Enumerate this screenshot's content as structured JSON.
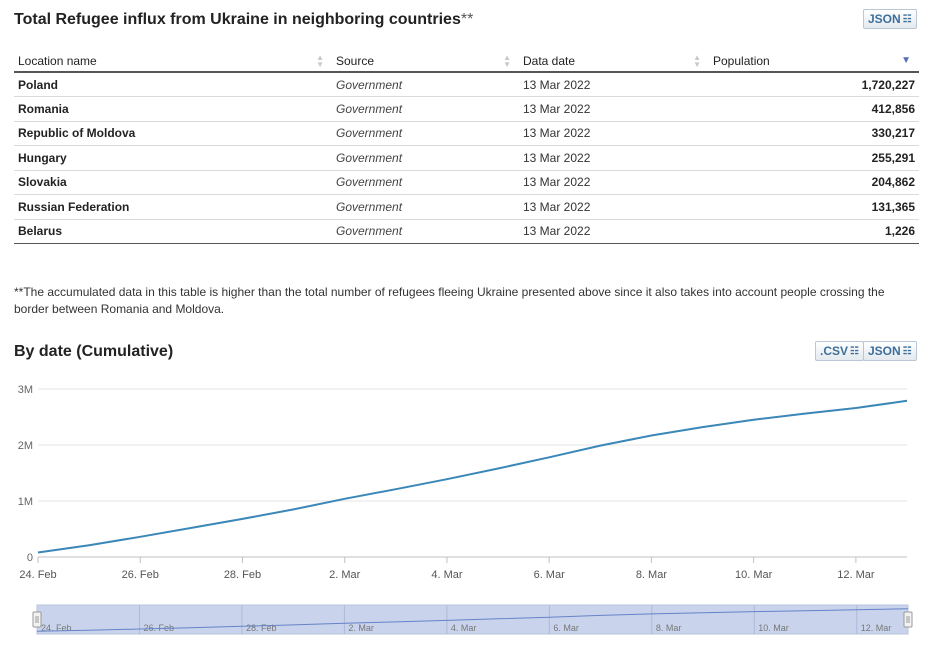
{
  "table_section": {
    "title": "Total Refugee influx from Ukraine in neighboring countries",
    "title_suffix": "**",
    "json_button": "JSON",
    "columns": [
      "Location name",
      "Source",
      "Data date",
      "Population"
    ],
    "rows": [
      {
        "location": "Poland",
        "source": "Government",
        "date": "13 Mar 2022",
        "population": "1,720,227"
      },
      {
        "location": "Romania",
        "source": "Government",
        "date": "13 Mar 2022",
        "population": "412,856"
      },
      {
        "location": "Republic of Moldova",
        "source": "Government",
        "date": "13 Mar 2022",
        "population": "330,217"
      },
      {
        "location": "Hungary",
        "source": "Government",
        "date": "13 Mar 2022",
        "population": "255,291"
      },
      {
        "location": "Slovakia",
        "source": "Government",
        "date": "13 Mar 2022",
        "population": "204,862"
      },
      {
        "location": "Russian Federation",
        "source": "Government",
        "date": "13 Mar 2022",
        "population": "131,365"
      },
      {
        "location": "Belarus",
        "source": "Government",
        "date": "13 Mar 2022",
        "population": "1,226"
      }
    ],
    "footnote": "**The accumulated data in this table is higher than the total number of refugees fleeing Ukraine presented above since it also takes into account people crossing the border between Romania and Moldova."
  },
  "chart_section": {
    "title": "By date (Cumulative)",
    "csv_button": ".CSV",
    "json_button": "JSON",
    "line_color": "#3a87b8",
    "navigator_fill": "#c9d4ec",
    "navigator_stroke": "#6683c7"
  },
  "chart_data": {
    "type": "line",
    "title": "By date (Cumulative)",
    "x": [
      "2022-02-24",
      "2022-02-25",
      "2022-02-26",
      "2022-02-27",
      "2022-02-28",
      "2022-03-01",
      "2022-03-02",
      "2022-03-03",
      "2022-03-04",
      "2022-03-05",
      "2022-03-06",
      "2022-03-07",
      "2022-03-08",
      "2022-03-09",
      "2022-03-10",
      "2022-03-11",
      "2022-03-12",
      "2022-03-13"
    ],
    "series": [
      {
        "values": [
          80000,
          210000,
          360000,
          520000,
          680000,
          850000,
          1040000,
          1210000,
          1390000,
          1580000,
          1780000,
          1990000,
          2170000,
          2320000,
          2450000,
          2560000,
          2660000,
          2790000
        ]
      }
    ],
    "x_ticks": [
      "24. Feb",
      "26. Feb",
      "28. Feb",
      "2. Mar",
      "4. Mar",
      "6. Mar",
      "8. Mar",
      "10. Mar",
      "12. Mar"
    ],
    "y_ticks": [
      "0",
      "1M",
      "2M",
      "3M"
    ],
    "ylim": [
      0,
      3000000
    ],
    "grid": "horizontal",
    "navigator": true
  }
}
